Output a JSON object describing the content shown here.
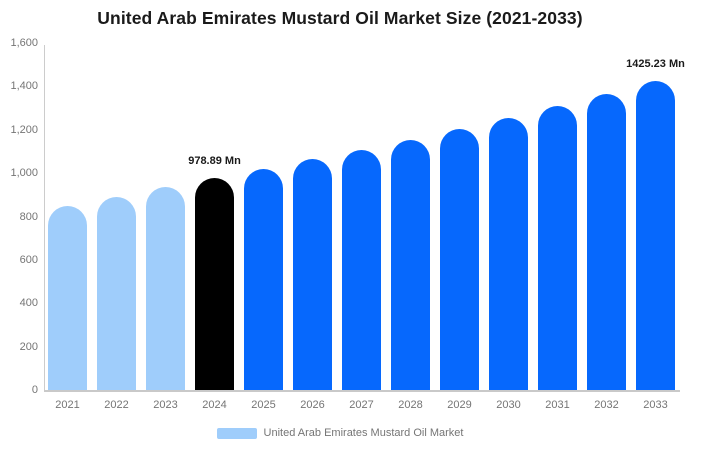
{
  "title": "United Arab Emirates Mustard Oil Market Size (2021-2033)",
  "legend": {
    "label": "United Arab Emirates Mustard Oil Market",
    "swatch_color": "#9FCDFB"
  },
  "colors": {
    "historical_bar": "#9FCDFB",
    "base_year_bar": "#000000",
    "forecast_bar": "#0668FD",
    "axis_line": "#CCCCCC",
    "tick_text": "#757575",
    "title_text": "#1A1A1A",
    "background": "#FFFFFF"
  },
  "chart_data": {
    "type": "bar",
    "title": "United Arab Emirates Mustard Oil Market Size (2021-2033)",
    "categories": [
      "2021",
      "2022",
      "2023",
      "2024",
      "2025",
      "2026",
      "2027",
      "2028",
      "2029",
      "2030",
      "2031",
      "2032",
      "2033"
    ],
    "values": [
      850,
      892,
      936,
      978.89,
      1020,
      1063,
      1107,
      1152,
      1203,
      1256,
      1310,
      1364,
      1425.23
    ],
    "unit": "Mn",
    "bar_colors": [
      "#9FCDFB",
      "#9FCDFB",
      "#9FCDFB",
      "#000000",
      "#0668FD",
      "#0668FD",
      "#0668FD",
      "#0668FD",
      "#0668FD",
      "#0668FD",
      "#0668FD",
      "#0668FD",
      "#0668FD"
    ],
    "xlabel": "",
    "ylabel": "",
    "ylim": [
      0,
      1600
    ],
    "ytick_step": 200,
    "ytick_labels": [
      "0",
      "200",
      "400",
      "600",
      "800",
      "1,000",
      "1,200",
      "1,400",
      "1,600"
    ],
    "grid": false,
    "legend_position": "bottom",
    "annotations": [
      {
        "index": 3,
        "label": "978.89 Mn"
      },
      {
        "index": 12,
        "label": "1425.23 Mn"
      }
    ]
  }
}
